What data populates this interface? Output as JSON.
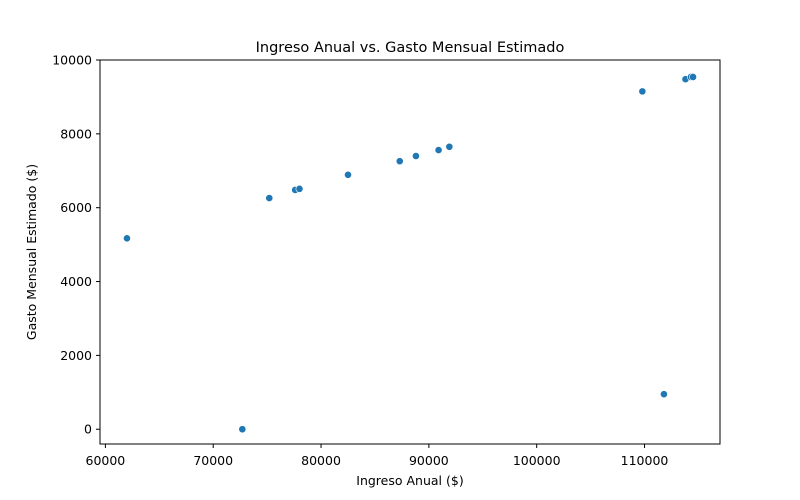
{
  "chart_data": {
    "type": "scatter",
    "title": "Ingreso Anual vs. Gasto Mensual Estimado",
    "xlabel": "Ingreso Anual ($)",
    "ylabel": "Gasto Mensual Estimado ($)",
    "xlim": [
      59500,
      117000
    ],
    "ylim": [
      -400,
      10000
    ],
    "xticks": [
      60000,
      70000,
      80000,
      90000,
      100000,
      110000
    ],
    "yticks": [
      0,
      2000,
      4000,
      6000,
      8000,
      10000
    ],
    "grid": false,
    "legend": "none",
    "marker_color": "#1f77b4",
    "points": [
      {
        "x": 62000,
        "y": 5170
      },
      {
        "x": 72700,
        "y": 0
      },
      {
        "x": 75200,
        "y": 6260
      },
      {
        "x": 77600,
        "y": 6480
      },
      {
        "x": 78000,
        "y": 6510
      },
      {
        "x": 82500,
        "y": 6890
      },
      {
        "x": 87300,
        "y": 7260
      },
      {
        "x": 88800,
        "y": 7400
      },
      {
        "x": 90900,
        "y": 7560
      },
      {
        "x": 91900,
        "y": 7650
      },
      {
        "x": 109800,
        "y": 9150
      },
      {
        "x": 111800,
        "y": 950
      },
      {
        "x": 113800,
        "y": 9480
      },
      {
        "x": 114300,
        "y": 9540
      },
      {
        "x": 114500,
        "y": 9540
      }
    ]
  }
}
